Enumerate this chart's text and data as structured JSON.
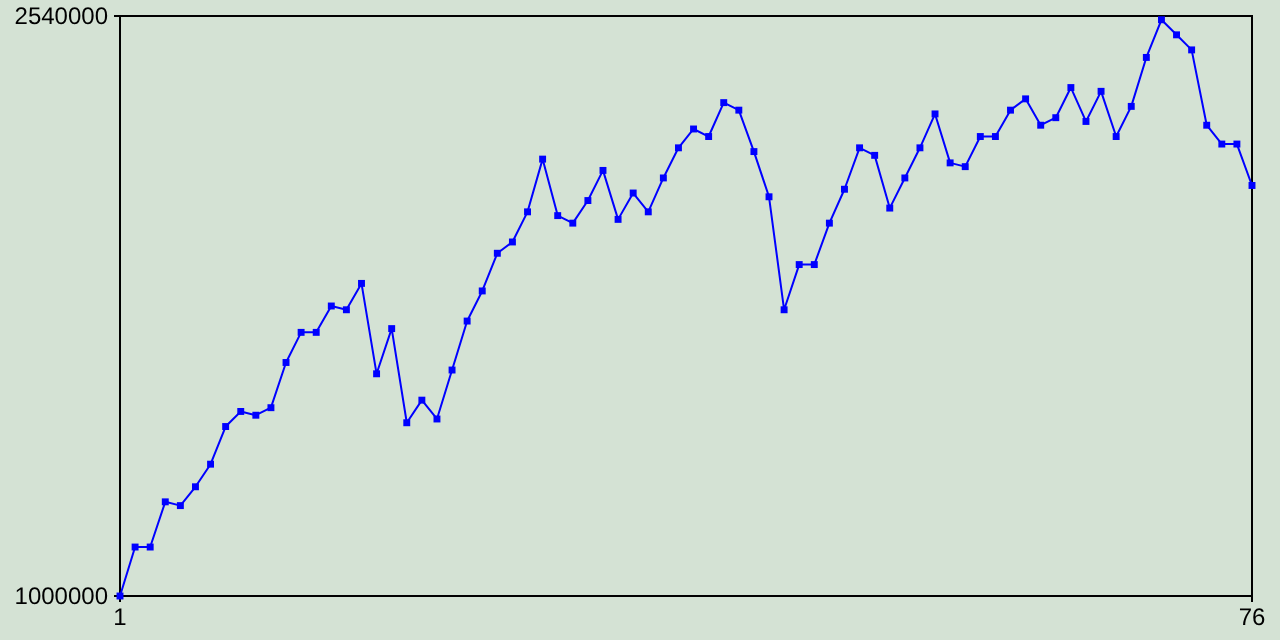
{
  "chart_data": {
    "type": "line",
    "x": [
      1,
      2,
      3,
      4,
      5,
      6,
      7,
      8,
      9,
      10,
      11,
      12,
      13,
      14,
      15,
      16,
      17,
      18,
      19,
      20,
      21,
      22,
      23,
      24,
      25,
      26,
      27,
      28,
      29,
      30,
      31,
      32,
      33,
      34,
      35,
      36,
      37,
      38,
      39,
      40,
      41,
      42,
      43,
      44,
      45,
      46,
      47,
      48,
      49,
      50,
      51,
      52,
      53,
      54,
      55,
      56,
      57,
      58,
      59,
      60,
      61,
      62,
      63,
      64,
      65,
      66,
      67,
      68,
      69,
      70,
      71,
      72,
      73,
      74,
      75,
      76
    ],
    "series": [
      {
        "color": "#0000ff",
        "values": [
          1000000,
          1130000,
          1130000,
          1250000,
          1240000,
          1290000,
          1350000,
          1450000,
          1490000,
          1480000,
          1500000,
          1620000,
          1700000,
          1700000,
          1770000,
          1760000,
          1830000,
          1590000,
          1710000,
          1460000,
          1520000,
          1470000,
          1600000,
          1730000,
          1810000,
          1910000,
          1940000,
          2020000,
          2160000,
          2010000,
          1990000,
          2050000,
          2130000,
          2000000,
          2070000,
          2020000,
          2110000,
          2190000,
          2240000,
          2220000,
          2310000,
          2290000,
          2180000,
          2060000,
          1760000,
          1880000,
          1880000,
          1990000,
          2080000,
          2190000,
          2170000,
          2030000,
          2110000,
          2190000,
          2280000,
          2150000,
          2140000,
          2220000,
          2220000,
          2290000,
          2320000,
          2250000,
          2270000,
          2350000,
          2260000,
          2340000,
          2220000,
          2300000,
          2430000,
          2530000,
          2490000,
          2450000,
          2250000,
          2200000,
          2200000,
          2090000
        ]
      }
    ],
    "xlim": [
      1,
      76
    ],
    "xticks": [
      1,
      76
    ],
    "ylim": [
      1000000,
      2540000
    ],
    "yticks": [
      1000000,
      2540000
    ],
    "marker": "square",
    "line_style": "solid"
  }
}
